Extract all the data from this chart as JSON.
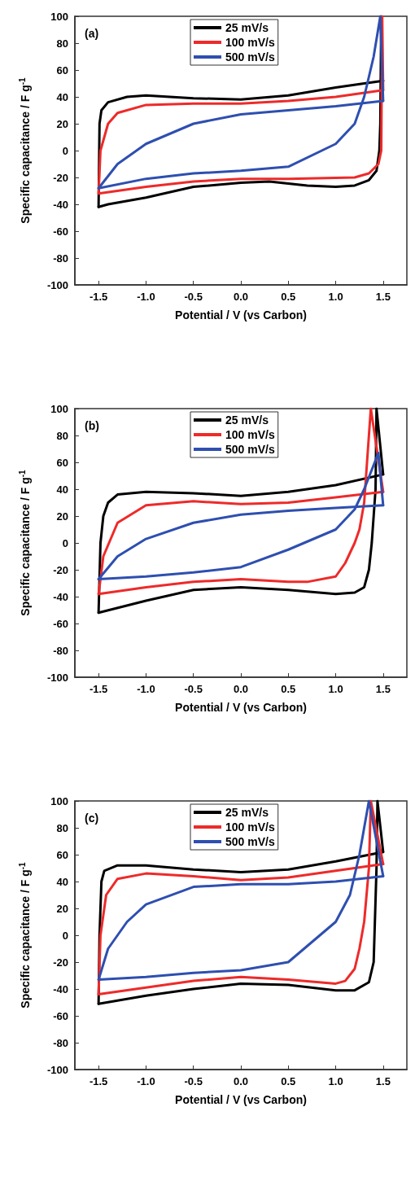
{
  "chart_data": [
    {
      "type": "line",
      "xlabel": "Potential / V (vs Carbon)",
      "ylabel": "Specific capacitance / F g$^{-1}$",
      "annotations": [
        "(a)"
      ],
      "legend": "top",
      "marker": "none",
      "line_style": "solid",
      "grid": false,
      "xlim": [
        -1.75,
        1.75
      ],
      "ylim": [
        -100,
        100
      ],
      "xticks": [
        {
          "value": -1.5,
          "label": "-1.5"
        },
        {
          "value": -1.0,
          "label": "-1.0"
        },
        {
          "value": -0.5,
          "label": "-0.5"
        },
        {
          "value": 0,
          "label": "0.0"
        },
        {
          "value": 0.5,
          "label": "0.5"
        },
        {
          "value": 1.0,
          "label": "1.0"
        },
        {
          "value": 1.5,
          "label": "1.5"
        }
      ],
      "yticks": [
        -100,
        -80,
        -60,
        -40,
        -20,
        0,
        20,
        40,
        60,
        80,
        100
      ],
      "series": [
        {
          "name": "25 mV/s",
          "color": "#000000",
          "x": [
            -1.5,
            -1.49,
            -1.47,
            -1.4,
            -1.2,
            -1.0,
            -0.5,
            0,
            0.5,
            1.0,
            1.3,
            1.5
          ],
          "values": [
            -42,
            20,
            30,
            36,
            40,
            41,
            39,
            38,
            41,
            47,
            50,
            52
          ]
        },
        {
          "color": "#000000",
          "x": [
            1.5,
            1.48,
            1.48,
            1.47,
            1.46,
            1.43,
            1.35,
            1.2,
            1.0,
            0.7,
            0.3,
            0,
            -0.5,
            -1.0,
            -1.4,
            -1.5
          ],
          "values": [
            52,
            52,
            100,
            20,
            0,
            -15,
            -22,
            -26,
            -27,
            -26,
            -23,
            -24,
            -27,
            -35,
            -40,
            -42
          ]
        },
        {
          "name": "100 mV/s",
          "color": "#ee2a2a",
          "x": [
            -1.5,
            -1.48,
            -1.4,
            -1.3,
            -1.0,
            -0.5,
            0,
            0.5,
            1.0,
            1.5
          ],
          "values": [
            -32,
            0,
            20,
            28,
            34,
            35,
            35,
            37,
            40,
            45
          ]
        },
        {
          "color": "#ee2a2a",
          "x": [
            1.5,
            1.49,
            1.48,
            1.45,
            1.35,
            1.2,
            0.5,
            0,
            -0.5,
            -1.0,
            -1.5
          ],
          "values": [
            45,
            100,
            0,
            -10,
            -17,
            -20,
            -21,
            -21,
            -23,
            -27,
            -32
          ]
        },
        {
          "name": "500 mV/s",
          "color": "#2e4fb0",
          "x": [
            -1.5,
            -1.3,
            -1.0,
            -0.5,
            0,
            0.5,
            1.0,
            1.5
          ],
          "values": [
            -28,
            -10,
            5,
            20,
            27,
            30,
            33,
            37
          ]
        },
        {
          "color": "#2e4fb0",
          "x": [
            1.5,
            1.47,
            1.4,
            1.3,
            1.2,
            1.0,
            0.5,
            0,
            -0.5,
            -1.0,
            -1.5
          ],
          "values": [
            37,
            100,
            70,
            40,
            20,
            5,
            -12,
            -15,
            -17,
            -21,
            -28
          ]
        }
      ]
    },
    {
      "type": "line",
      "xlabel": "Potential / V (vs Carbon)",
      "ylabel": "Specific capacitance / F g$^{-1}$",
      "annotations": [
        "(b)"
      ],
      "legend": "top",
      "marker": "none",
      "line_style": "solid",
      "grid": false,
      "xlim": [
        -1.75,
        1.75
      ],
      "ylim": [
        -100,
        100
      ],
      "xticks": [
        {
          "value": -1.5,
          "label": "-1.5"
        },
        {
          "value": -1.0,
          "label": "-1.0"
        },
        {
          "value": -0.5,
          "label": "-0.5"
        },
        {
          "value": 0,
          "label": "0.0"
        },
        {
          "value": 0.5,
          "label": "0.5"
        },
        {
          "value": 1.0,
          "label": "1.0"
        },
        {
          "value": 1.5,
          "label": "1.5"
        }
      ],
      "yticks": [
        -100,
        -80,
        -60,
        -40,
        -20,
        0,
        20,
        40,
        60,
        80,
        100
      ],
      "series": [
        {
          "name": "25 mV/s",
          "color": "#000000",
          "x": [
            -1.5,
            -1.48,
            -1.45,
            -1.4,
            -1.3,
            -1.0,
            -0.5,
            0,
            0.5,
            1.0,
            1.5
          ],
          "values": [
            -52,
            0,
            20,
            30,
            36,
            38,
            37,
            35,
            38,
            43,
            51
          ]
        },
        {
          "color": "#000000",
          "x": [
            1.5,
            1.43,
            1.42,
            1.38,
            1.35,
            1.3,
            1.2,
            1.0,
            0.5,
            0,
            -0.5,
            -1.0,
            -1.5
          ],
          "values": [
            51,
            100,
            40,
            0,
            -20,
            -33,
            -37,
            -38,
            -35,
            -33,
            -35,
            -43,
            -52
          ]
        },
        {
          "name": "100 mV/s",
          "color": "#ee2a2a",
          "x": [
            -1.5,
            -1.45,
            -1.3,
            -1.0,
            -0.5,
            0,
            0.5,
            1.0,
            1.5
          ],
          "values": [
            -38,
            -10,
            15,
            28,
            31,
            29,
            30,
            34,
            38
          ]
        },
        {
          "color": "#ee2a2a",
          "x": [
            1.5,
            1.37,
            1.33,
            1.3,
            1.25,
            1.2,
            1.1,
            1.0,
            0.7,
            0.5,
            0,
            -0.5,
            -1.0,
            -1.5
          ],
          "values": [
            38,
            100,
            60,
            30,
            10,
            0,
            -15,
            -25,
            -29,
            -29,
            -27,
            -29,
            -33,
            -38
          ]
        },
        {
          "name": "500 mV/s",
          "color": "#2e4fb0",
          "x": [
            -1.5,
            -1.3,
            -1.0,
            -0.5,
            0,
            0.5,
            1.0,
            1.5
          ],
          "values": [
            -27,
            -10,
            3,
            15,
            21,
            24,
            26,
            28
          ]
        },
        {
          "color": "#2e4fb0",
          "x": [
            1.5,
            1.45,
            1.3,
            1.2,
            1.0,
            0.5,
            0,
            -0.5,
            -1.0,
            -1.5
          ],
          "values": [
            28,
            67,
            40,
            25,
            10,
            -5,
            -18,
            -22,
            -25,
            -27
          ]
        }
      ]
    },
    {
      "type": "line",
      "xlabel": "Potential / V (vs Carbon)",
      "ylabel": "Specific capacitance / F g$^{-1}$",
      "annotations": [
        "(c)"
      ],
      "legend": "top",
      "marker": "none",
      "line_style": "solid",
      "grid": false,
      "xlim": [
        -1.75,
        1.75
      ],
      "ylim": [
        -100,
        100
      ],
      "xticks": [
        {
          "value": -1.5,
          "label": "-1.5"
        },
        {
          "value": -1.0,
          "label": "-1.0"
        },
        {
          "value": -0.5,
          "label": "-0.5"
        },
        {
          "value": 0,
          "label": "0.0"
        },
        {
          "value": 0.5,
          "label": "0.5"
        },
        {
          "value": 1.0,
          "label": "1.0"
        },
        {
          "value": 1.5,
          "label": "1.5"
        }
      ],
      "yticks": [
        -100,
        -80,
        -60,
        -40,
        -20,
        0,
        20,
        40,
        60,
        80,
        100
      ],
      "series": [
        {
          "name": "25 mV/s",
          "color": "#000000",
          "x": [
            -1.5,
            -1.49,
            -1.47,
            -1.44,
            -1.3,
            -1.0,
            -0.5,
            0,
            0.5,
            1.0,
            1.5
          ],
          "values": [
            -51,
            0,
            40,
            48,
            52,
            52,
            49,
            47,
            49,
            55,
            62
          ]
        },
        {
          "color": "#000000",
          "x": [
            1.5,
            1.44,
            1.43,
            1.4,
            1.35,
            1.2,
            1.0,
            0.5,
            0,
            -0.5,
            -1.0,
            -1.5
          ],
          "values": [
            62,
            100,
            50,
            -20,
            -35,
            -41,
            -41,
            -37,
            -36,
            -40,
            -45,
            -51
          ]
        },
        {
          "name": "100 mV/s",
          "color": "#ee2a2a",
          "x": [
            -1.5,
            -1.48,
            -1.42,
            -1.3,
            -1.0,
            -0.5,
            0,
            0.5,
            1.0,
            1.5
          ],
          "values": [
            -44,
            0,
            30,
            42,
            46,
            44,
            41,
            43,
            48,
            53
          ]
        },
        {
          "color": "#ee2a2a",
          "x": [
            1.5,
            1.37,
            1.35,
            1.3,
            1.25,
            1.2,
            1.1,
            1.0,
            0.5,
            0,
            -0.5,
            -1.0,
            -1.5
          ],
          "values": [
            53,
            100,
            50,
            10,
            -10,
            -25,
            -34,
            -36,
            -33,
            -31,
            -34,
            -39,
            -44
          ]
        },
        {
          "name": "500 mV/s",
          "color": "#2e4fb0",
          "x": [
            -1.5,
            -1.4,
            -1.2,
            -1.0,
            -0.5,
            0,
            0.5,
            1.0,
            1.5
          ],
          "values": [
            -33,
            -10,
            10,
            23,
            36,
            38,
            38,
            40,
            44
          ]
        },
        {
          "color": "#2e4fb0",
          "x": [
            1.5,
            1.35,
            1.25,
            1.15,
            1.0,
            0.5,
            0,
            -0.5,
            -1.0,
            -1.5
          ],
          "values": [
            44,
            100,
            60,
            30,
            10,
            -20,
            -26,
            -28,
            -31,
            -33
          ]
        }
      ]
    }
  ]
}
